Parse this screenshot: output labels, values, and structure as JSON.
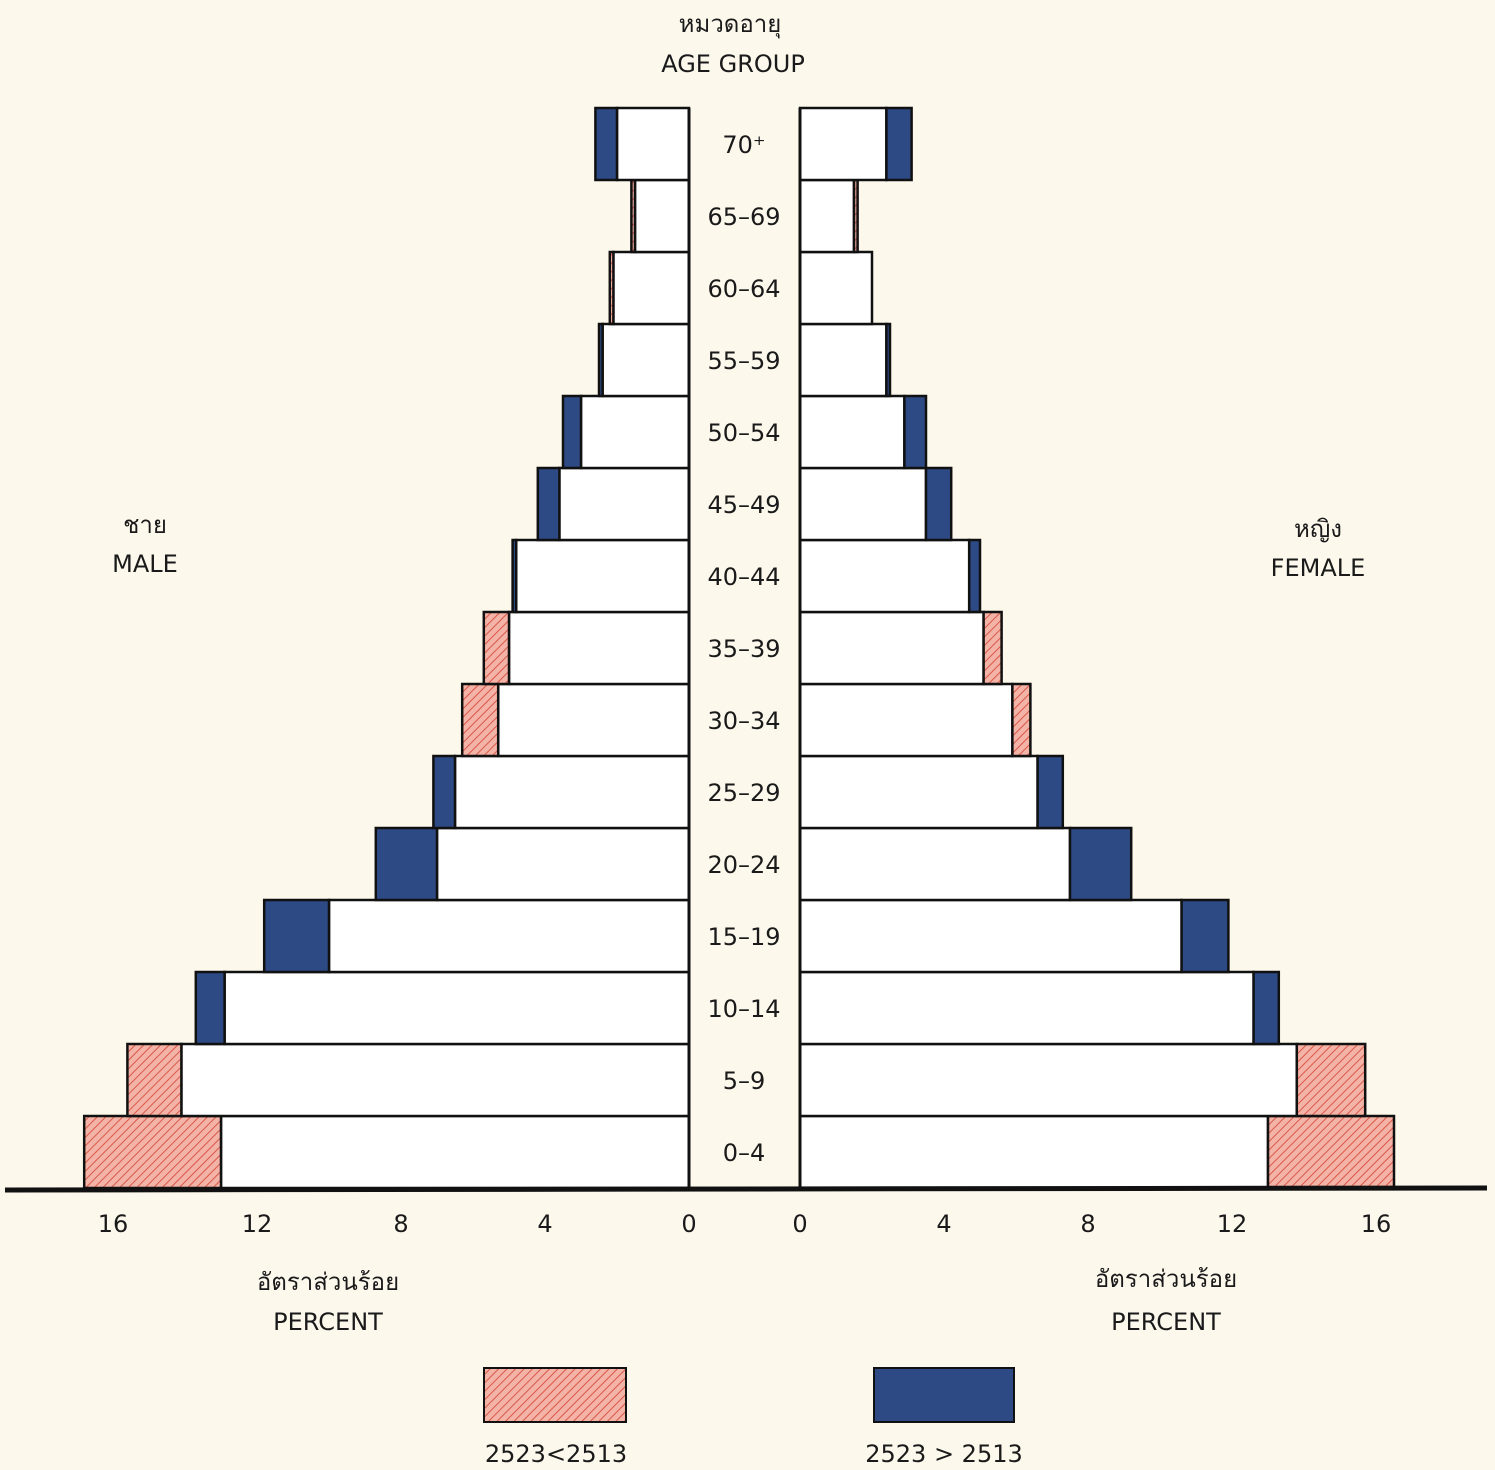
{
  "chart_data": {
    "type": "bar",
    "subtype": "population-pyramid",
    "title_thai": "หมวดอายุ",
    "title": "AGE GROUP",
    "categories": [
      "0-4",
      "5-9",
      "10-14",
      "15-19",
      "20-24",
      "25-29",
      "30-34",
      "35-39",
      "40-44",
      "45-49",
      "50-54",
      "55-59",
      "60-64",
      "65-69",
      "70+"
    ],
    "category_labels": [
      "0–4",
      "5–9",
      "10–14",
      "15–19",
      "20–24",
      "25–29",
      "30–34",
      "35–39",
      "40–44",
      "45–49",
      "50–54",
      "55–59",
      "60–64",
      "65–69",
      "70⁺"
    ],
    "male_label_thai": "ชาย",
    "male_label": "MALE",
    "female_label_thai": "หญิง",
    "female_label": "FEMALE",
    "xlabel_thai": "อัตราส่วนร้อย",
    "xlabel": "PERCENT",
    "xlim": [
      0,
      16
    ],
    "ticks": [
      16,
      12,
      8,
      4,
      0
    ],
    "series": [
      {
        "name": "MALE",
        "base": [
          13.0,
          14.1,
          12.9,
          10.0,
          7.0,
          6.5,
          5.3,
          5.0,
          4.8,
          3.6,
          3.0,
          2.4,
          2.1,
          1.5,
          2.0
        ],
        "total": [
          16.8,
          15.6,
          13.7,
          11.8,
          8.7,
          7.1,
          6.3,
          5.7,
          4.9,
          4.2,
          3.5,
          2.5,
          2.2,
          1.6,
          2.6
        ]
      },
      {
        "name": "FEMALE",
        "base": [
          13.0,
          13.8,
          12.6,
          10.6,
          7.5,
          6.6,
          5.9,
          5.1,
          4.7,
          3.5,
          2.9,
          2.4,
          2.0,
          1.5,
          2.4
        ],
        "total": [
          16.5,
          15.7,
          13.3,
          11.9,
          9.2,
          7.3,
          6.4,
          5.6,
          5.0,
          4.2,
          3.5,
          2.5,
          2.0,
          1.6,
          3.1
        ]
      }
    ],
    "legend": [
      {
        "label": "2523<2513",
        "color": "#e88a80",
        "pattern": "hatched"
      },
      {
        "label": "2523 > 2513",
        "color": "#2e4a85",
        "pattern": "solid"
      }
    ]
  }
}
